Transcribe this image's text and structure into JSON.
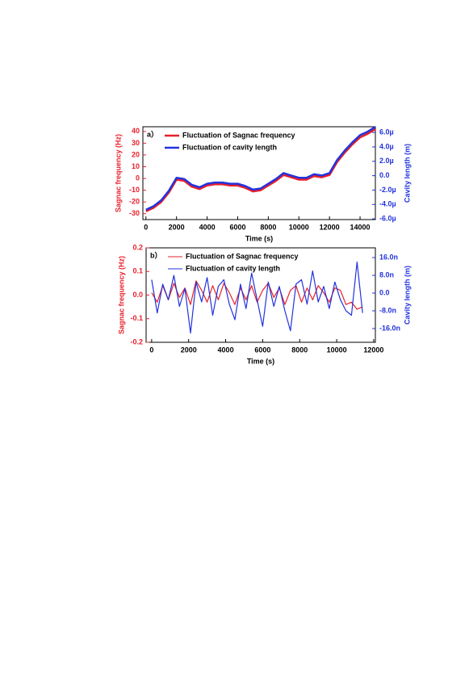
{
  "chart_data": [
    {
      "type": "line",
      "label": "a）",
      "xlabel": "Time (s)",
      "ylabel": "Sagnac frequency (Hz)",
      "y2label": "Cavity length (m)",
      "x": [
        0,
        500,
        1000,
        1500,
        2000,
        2500,
        3000,
        3500,
        4000,
        4500,
        5000,
        5500,
        6000,
        6500,
        7000,
        7500,
        8000,
        8500,
        9000,
        9500,
        10000,
        10500,
        11000,
        11500,
        12000,
        12500,
        13000,
        13500,
        14000,
        14500,
        15000
      ],
      "series": [
        {
          "name": "Fluctuation of Sagnac frequency",
          "color": "#e8202a",
          "axis": "y",
          "values": [
            -28,
            -25,
            -20,
            -12,
            -1,
            -2,
            -7,
            -9,
            -6,
            -5,
            -5,
            -6,
            -6,
            -8,
            -11,
            -10,
            -6,
            -2,
            3,
            1,
            -1,
            -1,
            2,
            1,
            3,
            14,
            22,
            29,
            35,
            38,
            42
          ]
        },
        {
          "name": "Fluctuation of cavity length",
          "color": "#2233dd",
          "axis": "y2",
          "values": [
            -4.74e-06,
            -4.24e-06,
            -3.42e-06,
            -2.1e-06,
            -2.9e-07,
            -4.6e-07,
            -1.28e-06,
            -1.61e-06,
            -1.12e-06,
            -9.5e-07,
            -9.5e-07,
            -1.12e-06,
            -1.12e-06,
            -1.45e-06,
            -1.94e-06,
            -1.78e-06,
            -1.12e-06,
            -4.6e-07,
            3.6e-07,
            3e-08,
            -2.9e-07,
            -2.9e-07,
            2e-07,
            3e-08,
            3.6e-07,
            2.17e-06,
            3.49e-06,
            4.64e-06,
            5.63e-06,
            6.12e-06,
            6.78e-06
          ]
        }
      ],
      "xlim": [
        -200,
        15000
      ],
      "xticks": [
        0,
        2000,
        4000,
        6000,
        8000,
        10000,
        12000,
        14000
      ],
      "ylim": [
        -35,
        44
      ],
      "yticks": [
        -30,
        -20,
        -10,
        0,
        10,
        20,
        30,
        40
      ],
      "y2lim": [
        -6.1e-06,
        6.8e-06
      ],
      "y2ticks": [
        {
          "value": -6e-06,
          "label": "-6.0µ"
        },
        {
          "value": -4e-06,
          "label": "-4.0µ"
        },
        {
          "value": -2e-06,
          "label": "-2.0µ"
        },
        {
          "value": 0,
          "label": "0.0"
        },
        {
          "value": 2e-06,
          "label": "2.0µ"
        },
        {
          "value": 4e-06,
          "label": "4.0µ"
        },
        {
          "value": 6e-06,
          "label": "6.0µ"
        }
      ]
    },
    {
      "type": "line",
      "label": "b）",
      "xlabel": "Time (s)",
      "ylabel": "Sagnac frequency (Hz)",
      "y2label": "Cavity length (m)",
      "x": [
        0,
        300,
        600,
        900,
        1200,
        1500,
        1800,
        2100,
        2400,
        2700,
        3000,
        3300,
        3600,
        3900,
        4200,
        4500,
        4800,
        5100,
        5400,
        5700,
        6000,
        6300,
        6600,
        6900,
        7200,
        7500,
        7800,
        8100,
        8400,
        8700,
        9000,
        9300,
        9600,
        9900,
        10200,
        10500,
        10800,
        11100,
        11400
      ],
      "series": [
        {
          "name": "Fluctuation of Sagnac frequency",
          "color": "#e8202a",
          "axis": "y",
          "values": [
            0.01,
            -0.03,
            0.04,
            -0.02,
            0.05,
            -0.01,
            0.03,
            -0.04,
            0.06,
            0.02,
            -0.03,
            0.04,
            -0.02,
            0.05,
            0.01,
            -0.04,
            0.03,
            -0.02,
            0.04,
            -0.03,
            0.02,
            0.05,
            -0.01,
            0.03,
            -0.04,
            0.02,
            0.04,
            -0.03,
            0.03,
            -0.02,
            0.04,
            0.01,
            -0.03,
            0.03,
            0.02,
            -0.04,
            -0.03,
            -0.06,
            -0.05
          ]
        },
        {
          "name": "Fluctuation of cavity length",
          "color": "#2233dd",
          "axis": "y2",
          "values": [
            6e-09,
            -9e-09,
            4e-09,
            -3e-09,
            8e-09,
            -6e-09,
            2e-09,
            -1.8e-08,
            5e-09,
            -4e-09,
            7e-09,
            -1e-08,
            3e-09,
            6e-09,
            -5e-09,
            -1.2e-08,
            4e-09,
            -7e-09,
            9e-09,
            -3e-09,
            -1.5e-08,
            5e-09,
            -6e-09,
            3e-09,
            -8e-09,
            -1.7e-08,
            4e-09,
            6e-09,
            -5e-09,
            1e-08,
            -4e-09,
            3e-09,
            -7e-09,
            5e-09,
            -3e-09,
            -8e-09,
            -1e-08,
            1.4e-08,
            -9e-09
          ]
        }
      ],
      "xlim": [
        -300,
        12090
      ],
      "xticks": [
        0,
        2000,
        4000,
        6000,
        8000,
        10000,
        12000
      ],
      "ylim": [
        -0.2,
        0.2
      ],
      "yticks": [
        -0.2,
        -0.1,
        {
          "value": 0,
          "label": "0.0"
        },
        0.1,
        0.2
      ],
      "y2lim": [
        -2.22e-08,
        2.04e-08
      ],
      "y2ticks": [
        {
          "value": -1.6e-08,
          "label": "-16.0n"
        },
        {
          "value": -8e-09,
          "label": "-8.0n"
        },
        {
          "value": 0,
          "label": "0.0"
        },
        {
          "value": 8e-09,
          "label": "8.0n"
        },
        {
          "value": 1.6e-08,
          "label": "16.0n"
        }
      ]
    }
  ]
}
